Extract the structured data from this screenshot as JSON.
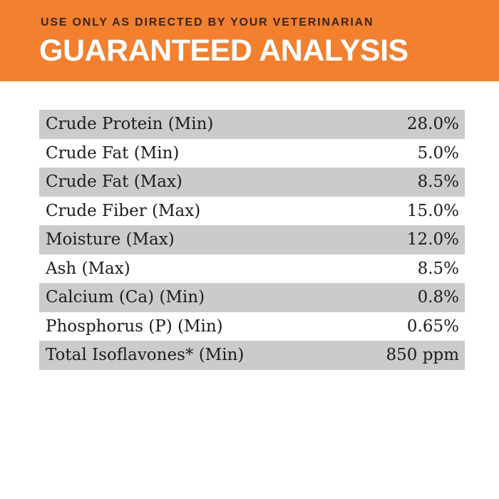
{
  "banner": {
    "directive": "USE ONLY AS DIRECTED BY YOUR VETERINARIAN",
    "title": "GUARANTEED ANALYSIS"
  },
  "colors": {
    "banner_orange": "#F2802F",
    "directive_text_brown": "#3A2517",
    "title_text_white": "#FFFFFF",
    "row_shade_gray": "#CBCBCB",
    "table_text": "#1C1C1A"
  },
  "table": {
    "rows": [
      {
        "label": "Crude Protein (Min)",
        "value": "28.0%"
      },
      {
        "label": "Crude Fat (Min)",
        "value": "5.0%"
      },
      {
        "label": "Crude Fat (Max)",
        "value": "8.5%"
      },
      {
        "label": "Crude Fiber (Max)",
        "value": "15.0%"
      },
      {
        "label": "Moisture (Max)",
        "value": "12.0%"
      },
      {
        "label": "Ash (Max)",
        "value": "8.5%"
      },
      {
        "label": "Calcium (Ca) (Min)",
        "value": "0.8%"
      },
      {
        "label": "Phosphorus (P) (Min)",
        "value": "0.65%"
      },
      {
        "label": "Total Isoflavones* (Min)",
        "value": "850 ppm"
      }
    ]
  }
}
